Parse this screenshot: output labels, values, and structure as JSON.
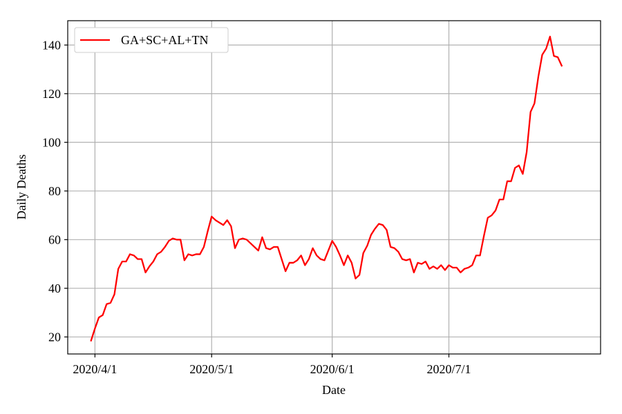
{
  "chart_data": {
    "type": "line",
    "title": "",
    "xlabel": "Date",
    "ylabel": "Daily Deaths",
    "x_type": "date",
    "xlim": [
      "2020-03-25",
      "2020-08-09"
    ],
    "ylim": [
      13,
      150
    ],
    "xticks": [
      {
        "date": "2020-04-01",
        "label": "2020/4/1"
      },
      {
        "date": "2020-05-01",
        "label": "2020/5/1"
      },
      {
        "date": "2020-06-01",
        "label": "2020/6/1"
      },
      {
        "date": "2020-07-01",
        "label": "2020/7/1"
      }
    ],
    "yticks": [
      20,
      40,
      60,
      80,
      100,
      120,
      140
    ],
    "grid": true,
    "legend": {
      "location": "upper left",
      "entries": [
        "GA+SC+AL+TN"
      ]
    },
    "series": [
      {
        "name": "GA+SC+AL+TN",
        "color": "#ff0000",
        "x_start": "2020-03-31",
        "x_step_days": 1,
        "values": [
          18.5,
          23.5,
          28.0,
          29.0,
          33.5,
          34.0,
          37.5,
          48.0,
          51.0,
          51.0,
          54.0,
          53.5,
          52.0,
          52.0,
          46.5,
          49.0,
          51.0,
          54.0,
          55.0,
          57.0,
          59.5,
          60.5,
          60.0,
          60.0,
          51.5,
          54.0,
          53.5,
          54.0,
          54.0,
          57.0,
          63.5,
          69.5,
          68.0,
          67.0,
          66.0,
          68.0,
          65.5,
          56.5,
          60.0,
          60.5,
          60.0,
          58.5,
          57.0,
          55.5,
          61.0,
          56.5,
          56.0,
          57.0,
          57.0,
          52.0,
          47.0,
          50.5,
          50.5,
          51.5,
          53.5,
          49.5,
          52.0,
          56.5,
          53.5,
          52.0,
          51.5,
          55.5,
          59.5,
          57.0,
          53.5,
          49.5,
          53.5,
          50.5,
          44.0,
          45.5,
          54.5,
          57.5,
          62.0,
          64.5,
          66.5,
          66.0,
          64.0,
          57.0,
          56.5,
          55.0,
          52.0,
          51.5,
          52.0,
          46.5,
          50.5,
          50.0,
          51.0,
          48.0,
          49.0,
          48.0,
          49.5,
          47.5,
          49.5,
          48.5,
          48.5,
          46.5,
          48.0,
          48.5,
          49.5,
          53.5,
          53.5,
          61.5,
          69.0,
          70.0,
          72.0,
          76.5,
          76.5,
          84.0,
          84.0,
          89.5,
          90.5,
          87.0,
          96.0,
          112.5,
          116.0,
          127.0,
          136.0,
          138.5,
          143.5,
          135.5,
          135.0,
          131.5
        ]
      }
    ]
  }
}
